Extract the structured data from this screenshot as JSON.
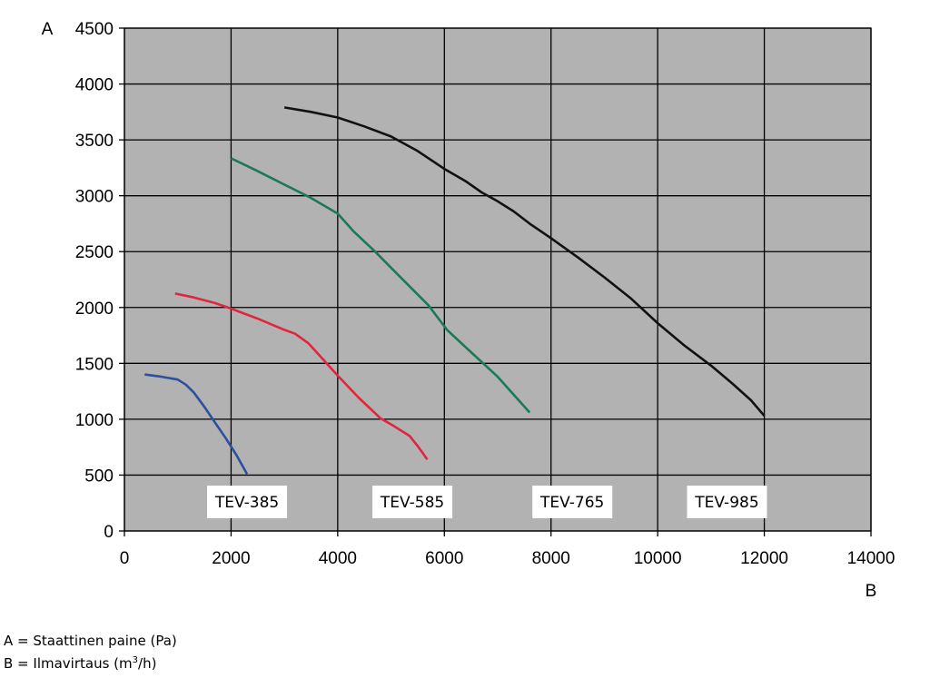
{
  "chart_data": {
    "type": "line",
    "ylabel": "A",
    "xlabel": "B",
    "xlim": [
      0,
      14000
    ],
    "ylim": [
      0,
      4500
    ],
    "xticks": [
      "0",
      "2000",
      "4000",
      "6000",
      "8000",
      "10000",
      "12000",
      "14000"
    ],
    "yticks": [
      "0",
      "500",
      "1000",
      "1500",
      "2000",
      "2500",
      "3000",
      "3500",
      "4000",
      "4500"
    ],
    "grid": true,
    "plot_background": "#b2b2b2",
    "series": [
      {
        "name": "TEV-385",
        "color": "#2e4fa0",
        "points": [
          [
            380,
            1400
          ],
          [
            700,
            1380
          ],
          [
            1000,
            1355
          ],
          [
            1150,
            1310
          ],
          [
            1300,
            1240
          ],
          [
            1500,
            1110
          ],
          [
            1700,
            970
          ],
          [
            1900,
            830
          ],
          [
            2100,
            680
          ],
          [
            2300,
            510
          ]
        ]
      },
      {
        "name": "TEV-585",
        "color": "#e0263f",
        "points": [
          [
            950,
            2125
          ],
          [
            1300,
            2090
          ],
          [
            1700,
            2040
          ],
          [
            2000,
            1990
          ],
          [
            2500,
            1900
          ],
          [
            3000,
            1800
          ],
          [
            3200,
            1765
          ],
          [
            3450,
            1680
          ],
          [
            3700,
            1550
          ],
          [
            4000,
            1390
          ],
          [
            4400,
            1190
          ],
          [
            4800,
            1010
          ],
          [
            5050,
            940
          ],
          [
            5350,
            850
          ],
          [
            5500,
            760
          ],
          [
            5680,
            640
          ]
        ]
      },
      {
        "name": "TEV-765",
        "color": "#1a7a55",
        "points": [
          [
            2000,
            3335
          ],
          [
            2500,
            3220
          ],
          [
            3000,
            3100
          ],
          [
            3500,
            2980
          ],
          [
            4000,
            2840
          ],
          [
            4300,
            2680
          ],
          [
            4700,
            2500
          ],
          [
            5200,
            2260
          ],
          [
            5700,
            2020
          ],
          [
            6050,
            1800
          ],
          [
            6500,
            1600
          ],
          [
            7000,
            1380
          ],
          [
            7600,
            1060
          ]
        ]
      },
      {
        "name": "TEV-985",
        "color": "#111111",
        "points": [
          [
            3000,
            3790
          ],
          [
            3500,
            3750
          ],
          [
            4000,
            3700
          ],
          [
            4500,
            3620
          ],
          [
            5000,
            3530
          ],
          [
            5500,
            3400
          ],
          [
            6000,
            3240
          ],
          [
            6400,
            3130
          ],
          [
            6700,
            3030
          ],
          [
            7000,
            2950
          ],
          [
            7300,
            2860
          ],
          [
            7600,
            2750
          ],
          [
            8000,
            2620
          ],
          [
            8500,
            2450
          ],
          [
            9000,
            2270
          ],
          [
            9500,
            2080
          ],
          [
            10000,
            1860
          ],
          [
            10500,
            1660
          ],
          [
            11000,
            1480
          ],
          [
            11400,
            1320
          ],
          [
            11750,
            1170
          ],
          [
            12000,
            1030
          ]
        ]
      }
    ]
  },
  "footnotes": {
    "a": "A = Staattinen paine (Pa)",
    "b_prefix": "B = Ilmavirtaus (m",
    "b_sup": "3",
    "b_suffix": "/h)"
  }
}
